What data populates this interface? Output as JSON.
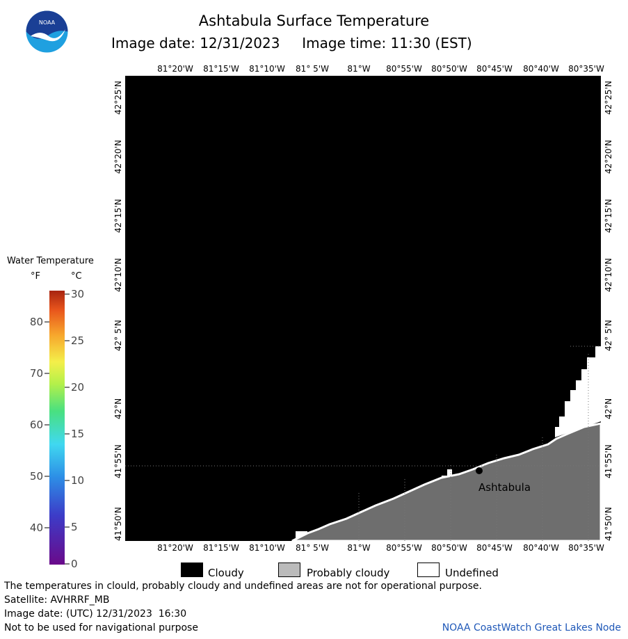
{
  "header": {
    "title": "Ashtabula Surface Temperature",
    "date_label": "Image date: 12/31/2023",
    "time_label": "Image time: 11:30 (EST)"
  },
  "logo": {
    "text": "NOAA",
    "colors": {
      "top": "#1a3f95",
      "bottom": "#1fa0e0",
      "bird": "#ffffff"
    }
  },
  "map": {
    "longitude_ticks": [
      "81°20'W",
      "81°15'W",
      "81°10'W",
      "81° 5'W",
      "81°W",
      "80°55'W",
      "80°50'W",
      "80°45'W",
      "80°40'W",
      "80°35'W"
    ],
    "latitude_ticks": [
      "42°25'N",
      "42°20'N",
      "42°15'N",
      "42°10'N",
      "42° 5'N",
      "42°N",
      "41°55'N",
      "41°50'N"
    ],
    "place_label": "Ashtabula",
    "colors": {
      "cloudy": "#000000",
      "land": "#6e6e6e",
      "undefined": "#ffffff",
      "grid": "#777777"
    }
  },
  "legend": {
    "title": "Water Temperature",
    "unit_f": "°F",
    "unit_c": "°C",
    "f_ticks": [
      "80",
      "70",
      "60",
      "50",
      "40"
    ],
    "c_ticks": [
      "30",
      "25",
      "20",
      "15",
      "10",
      "5",
      "0"
    ]
  },
  "key": {
    "cloudy": "Cloudy",
    "probably_cloudy": "Probably cloudy",
    "undefined": "Undefined",
    "probably_cloudy_color": "#bbbbbb"
  },
  "footer": {
    "disclaimer": "The temperatures in clould, probably cloudy and undefined areas are not for operational purpose.",
    "satellite": "Satellite: AVHRRF_MB",
    "utc_date": "Image date: (UTC) 12/31/2023  16:30",
    "navigation": "Not to be used for navigational purpose",
    "credit": "NOAA CoastWatch Great Lakes Node"
  }
}
